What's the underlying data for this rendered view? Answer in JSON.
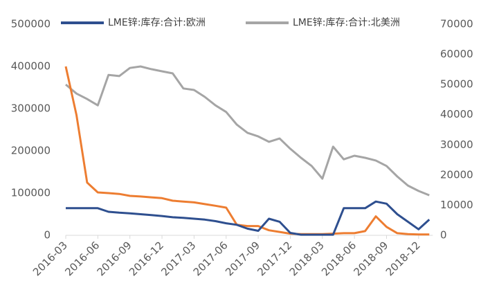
{
  "chart_data": {
    "type": "line",
    "categories": [
      "2016-03",
      null,
      null,
      "2016-06",
      null,
      null,
      "2016-09",
      null,
      null,
      "2016-12",
      null,
      null,
      "2017-03",
      null,
      null,
      "2017-06",
      null,
      null,
      "2017-09",
      null,
      null,
      "2017-12",
      null,
      null,
      "2018-03",
      null,
      null,
      "2018-06",
      null,
      null,
      "2018-09",
      null,
      null,
      "2018-12",
      null
    ],
    "series": [
      {
        "name": "LME锌:库存:合计:欧洲",
        "color": "#2e4f8f",
        "axis": "y2",
        "values": [
          9000,
          9000,
          9000,
          9000,
          7800,
          7500,
          7300,
          7000,
          6700,
          6400,
          6000,
          5800,
          5500,
          5200,
          4700,
          4000,
          3500,
          2200,
          1500,
          5500,
          4500,
          800,
          200,
          200,
          200,
          200,
          9000,
          9000,
          9000,
          11200,
          10500,
          7000,
          4500,
          2000,
          5200
        ]
      },
      {
        "name": "LME锌:库存:合计:北美洲",
        "color": "#a5a5a5",
        "axis": "y2",
        "values": [
          50000,
          47000,
          45200,
          43100,
          53200,
          52800,
          55500,
          56000,
          55100,
          54400,
          53700,
          48700,
          48200,
          45900,
          43100,
          40900,
          36700,
          34000,
          32800,
          31000,
          32100,
          28700,
          25700,
          23000,
          18800,
          29400,
          25200,
          26400,
          25700,
          24800,
          23000,
          19500,
          16500,
          14700,
          13300
        ]
      },
      {
        "color": "#ed7d31",
        "values": [
          400000,
          285000,
          125000,
          101600,
          100000,
          98000,
          93400,
          92000,
          90000,
          88000,
          82000,
          80000,
          78000,
          74000,
          70000,
          65600,
          25000,
          22000,
          22000,
          12000,
          8000,
          4000,
          3000,
          3000,
          3000,
          4000,
          5000,
          5000,
          10000,
          45000,
          20000,
          5000,
          3000,
          2000,
          2000
        ]
      }
    ],
    "ylim": [
      0,
      500000
    ],
    "yticks": [
      0,
      100000,
      200000,
      300000,
      400000,
      500000
    ],
    "y2lim": [
      0,
      70000
    ],
    "y2ticks": [
      0,
      10000,
      20000,
      30000,
      40000,
      50000,
      60000,
      70000
    ]
  }
}
